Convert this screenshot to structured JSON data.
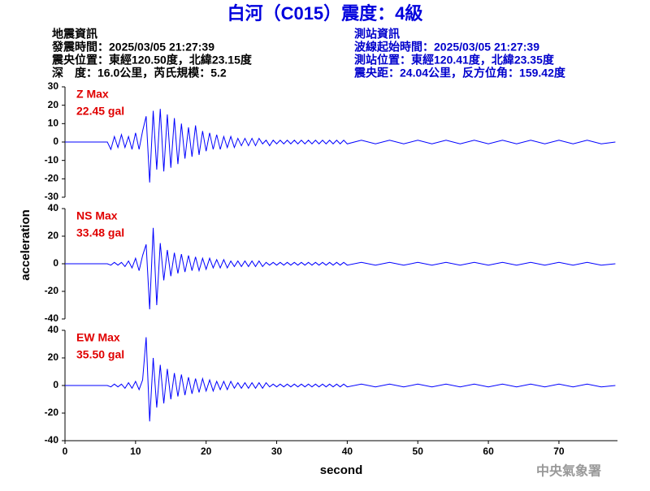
{
  "header": {
    "title": "白河（C015）震度：4級",
    "left": [
      "地震資訊",
      "發震時間：2025/03/05 21:27:39",
      "震央位置：東經120.50度，北緯23.15度",
      "深　度：16.0公里，芮氏規模：5.2"
    ],
    "right": [
      "測站資訊",
      "波線起始時間：2025/03/05 21:27:39",
      "測站位置：東經120.41度，北緯23.35度",
      "震央距：24.04公里，反方位角：159.42度"
    ],
    "ylabel": "acceleration",
    "watermark": "中央氣象署"
  },
  "chart_data": [
    {
      "type": "line",
      "name": "Z Max",
      "max_label": "22.45 gal",
      "color": "#0000ff",
      "xlim": [
        0,
        78.3
      ],
      "ylim": [
        -30,
        30
      ],
      "yticks": [
        -30,
        -20,
        -10,
        0,
        10,
        20,
        30
      ],
      "x": [
        0,
        6,
        6.5,
        7,
        7.5,
        8,
        8.5,
        9,
        9.5,
        10,
        10.5,
        11,
        11.5,
        12,
        12.5,
        13,
        13.5,
        14,
        14.5,
        15,
        15.5,
        16,
        16.5,
        17,
        17.5,
        18,
        18.5,
        19,
        19.5,
        20,
        20.5,
        21,
        21.5,
        22,
        22.5,
        23,
        23.5,
        24,
        24.5,
        25,
        25.5,
        26,
        26.5,
        27,
        27.5,
        28,
        28.5,
        29,
        29.5,
        30,
        30.5,
        31,
        31.5,
        32,
        32.5,
        33,
        33.5,
        34,
        34.5,
        35,
        35.5,
        36,
        36.5,
        37,
        37.5,
        38,
        38.5,
        39,
        39.5,
        40,
        42,
        44,
        46,
        48,
        50,
        52,
        54,
        56,
        58,
        60,
        62,
        64,
        66,
        68,
        70,
        72,
        74,
        76,
        78
      ],
      "values": [
        0,
        0,
        -4,
        3,
        -3,
        4,
        -3,
        3,
        -4,
        5,
        -4,
        6,
        14,
        -22,
        17,
        -15,
        18,
        -16,
        15,
        -14,
        13,
        -12,
        10,
        -9,
        8,
        -8,
        9,
        -7,
        6,
        -5,
        5,
        -4,
        4,
        -4,
        3,
        -3,
        3,
        -3,
        2,
        -2,
        2,
        -2,
        2,
        -2,
        2,
        -1,
        1,
        -2,
        1,
        -1,
        1,
        -1,
        1,
        -1,
        1,
        -1,
        1,
        -1,
        1,
        -1,
        1,
        -1,
        1,
        -1,
        1,
        -1,
        1,
        -1,
        1,
        -1,
        1,
        -1,
        1,
        -1,
        1,
        -1,
        1,
        -1,
        1,
        -1,
        1,
        -1,
        1,
        -1,
        1,
        -1,
        1,
        -1,
        0
      ]
    },
    {
      "type": "line",
      "name": "NS Max",
      "max_label": "33.48 gal",
      "color": "#0000ff",
      "xlim": [
        0,
        78.3
      ],
      "ylim": [
        -40,
        40
      ],
      "yticks": [
        -40,
        -20,
        0,
        20,
        40
      ],
      "x": [
        0,
        6,
        6.5,
        7,
        7.5,
        8,
        8.5,
        9,
        9.5,
        10,
        10.5,
        11,
        11.5,
        12,
        12.5,
        13,
        13.5,
        14,
        14.5,
        15,
        15.5,
        16,
        16.5,
        17,
        17.5,
        18,
        18.5,
        19,
        19.5,
        20,
        20.5,
        21,
        21.5,
        22,
        22.5,
        23,
        23.5,
        24,
        24.5,
        25,
        25.5,
        26,
        26.5,
        27,
        27.5,
        28,
        28.5,
        29,
        29.5,
        30,
        30.5,
        31,
        31.5,
        32,
        32.5,
        33,
        33.5,
        34,
        34.5,
        35,
        35.5,
        36,
        36.5,
        37,
        37.5,
        38,
        38.5,
        39,
        39.5,
        40,
        42,
        44,
        46,
        48,
        50,
        52,
        54,
        56,
        58,
        60,
        62,
        64,
        66,
        68,
        70,
        72,
        74,
        76,
        78
      ],
      "values": [
        0,
        0,
        -1,
        1,
        -1,
        1,
        -2,
        2,
        -3,
        4,
        -5,
        6,
        14,
        -33,
        26,
        -30,
        15,
        -12,
        10,
        -9,
        8,
        -7,
        7,
        -6,
        6,
        -5,
        5,
        -5,
        4,
        -4,
        4,
        -3,
        3,
        -3,
        3,
        -3,
        2,
        -2,
        2,
        -2,
        2,
        -2,
        2,
        -2,
        2,
        -2,
        1,
        -1,
        1,
        -1,
        1,
        -1,
        1,
        -1,
        1,
        -1,
        1,
        -1,
        1,
        -1,
        1,
        -1,
        1,
        -1,
        1,
        -1,
        1,
        -1,
        1,
        -1,
        1,
        -1,
        1,
        -1,
        1,
        -1,
        1,
        -1,
        1,
        -1,
        1,
        -1,
        1,
        -1,
        1,
        -1,
        1,
        -1,
        0
      ]
    },
    {
      "type": "line",
      "name": "EW Max",
      "max_label": "35.50 gal",
      "color": "#0000ff",
      "xlim": [
        0,
        78.3
      ],
      "ylim": [
        -40,
        40
      ],
      "yticks": [
        -40,
        -20,
        0,
        20,
        40
      ],
      "xticks": [
        0,
        10,
        20,
        30,
        40,
        50,
        60,
        70
      ],
      "xlabel": "second",
      "x": [
        0,
        6,
        6.5,
        7,
        7.5,
        8,
        8.5,
        9,
        9.5,
        10,
        10.5,
        11,
        11.5,
        12,
        12.5,
        13,
        13.5,
        14,
        14.5,
        15,
        15.5,
        16,
        16.5,
        17,
        17.5,
        18,
        18.5,
        19,
        19.5,
        20,
        20.5,
        21,
        21.5,
        22,
        22.5,
        23,
        23.5,
        24,
        24.5,
        25,
        25.5,
        26,
        26.5,
        27,
        27.5,
        28,
        28.5,
        29,
        29.5,
        30,
        30.5,
        31,
        31.5,
        32,
        32.5,
        33,
        33.5,
        34,
        34.5,
        35,
        35.5,
        36,
        36.5,
        37,
        37.5,
        38,
        38.5,
        39,
        39.5,
        40,
        42,
        44,
        46,
        48,
        50,
        52,
        54,
        56,
        58,
        60,
        62,
        64,
        66,
        68,
        70,
        72,
        74,
        76,
        78
      ],
      "values": [
        0,
        0,
        -1,
        1,
        -1,
        1,
        -2,
        2,
        -2,
        3,
        -3,
        4,
        35,
        -26,
        20,
        -16,
        15,
        -13,
        12,
        -10,
        9,
        -8,
        8,
        -7,
        6,
        -6,
        5,
        -5,
        5,
        -4,
        4,
        -4,
        3,
        -3,
        3,
        -3,
        3,
        -2,
        2,
        -2,
        2,
        -2,
        2,
        -2,
        2,
        -2,
        2,
        -1,
        1,
        -1,
        1,
        -1,
        1,
        -1,
        1,
        -1,
        1,
        -1,
        1,
        -1,
        1,
        -1,
        1,
        -1,
        1,
        -1,
        1,
        -1,
        1,
        -1,
        1,
        -1,
        1,
        -1,
        1,
        -1,
        1,
        -1,
        1,
        -1,
        1,
        -1,
        1,
        -1,
        1,
        -1,
        1,
        -1,
        0
      ]
    }
  ]
}
